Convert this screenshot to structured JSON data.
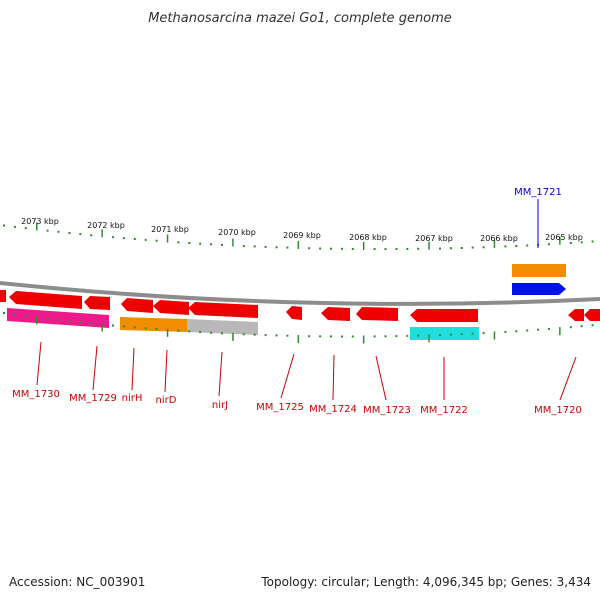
{
  "title": "Methanosarcina mazei Go1, complete genome",
  "footer": {
    "accession": "Accession: NC_003901",
    "info": "Topology: circular; Length: 4,096,345 bp; Genes: 3,434"
  },
  "colors": {
    "backbone": "#8c8c8c",
    "tick": "#2e8b2e",
    "gene_red": "#ee0000",
    "label_red": "#cc0000",
    "label_blue": "#0000cc",
    "pink": "#ee1a8c",
    "orange": "#f28c00",
    "gray": "#b8b8b8",
    "cyan": "#22dddd",
    "blue": "#0011ee"
  },
  "kbp_labels": [
    "2073 kbp",
    "2072 kbp",
    "2071 kbp",
    "2070 kbp",
    "2069 kbp",
    "2068 kbp",
    "2067 kbp",
    "2066 kbp",
    "2065 kbp"
  ],
  "gene_labels": {
    "mm_1721": "MM_1721",
    "mm_1730": "MM_1730",
    "mm_1729": "MM_1729",
    "nirh": "nirH",
    "nird": "nirD",
    "nirj": "nirJ",
    "mm_1725": "MM_1725",
    "mm_1724": "MM_1724",
    "mm_1723": "MM_1723",
    "mm_1722": "MM_1722",
    "mm_1720": "MM_1720"
  }
}
